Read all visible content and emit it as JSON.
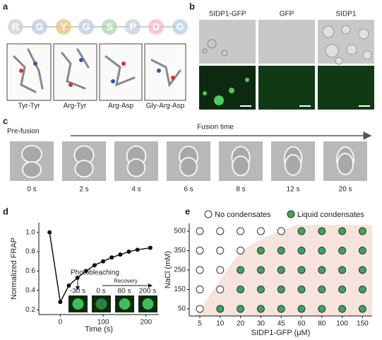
{
  "panel_labels": [
    "a",
    "b",
    "c",
    "d",
    "e"
  ],
  "panel_a": {
    "sequence": [
      "R",
      "G",
      "Y",
      "G",
      "S",
      "P",
      "D",
      "G"
    ],
    "sequence_colors": [
      "#cfcfcf",
      "#b9cbe6",
      "#e8c27a",
      "#b9cbe6",
      "#a9d8a9",
      "#c4cfdf",
      "#f2b8c6",
      "#b9cbe6"
    ],
    "image_labels": [
      "Tyr-Tyr",
      "Arg-Tyr",
      "Arg-Asp",
      "Gly-Arg-Asp"
    ]
  },
  "panel_b": {
    "columns": [
      "SIDP1-GFP",
      "GFP",
      "SIDP1"
    ]
  },
  "panel_c": {
    "start_label": "Pre-fusion",
    "arrow_label": "Fusion time",
    "times": [
      "0 s",
      "2 s",
      "4 s",
      "6 s",
      "8 s",
      "12 s",
      "20 s"
    ]
  },
  "chart_data": [
    {
      "type": "line",
      "xlabel": "Time (s)",
      "ylabel": "Normalized FRAP",
      "color": "#111111",
      "x": [
        -25,
        0,
        20,
        40,
        60,
        80,
        100,
        120,
        140,
        160,
        180,
        210
      ],
      "values": [
        1.0,
        0.28,
        0.45,
        0.53,
        0.6,
        0.66,
        0.7,
        0.74,
        0.77,
        0.8,
        0.82,
        0.84
      ],
      "xlim": [
        -50,
        230
      ],
      "xticks": [
        0,
        100,
        200
      ],
      "ylim": [
        0.15,
        1.1
      ],
      "yticks": [
        0.2,
        0.4,
        0.6,
        0.8,
        {
          "value": 1.0,
          "label": "1.0"
        }
      ],
      "annotations": [
        "Photobleaching",
        "Recovery"
      ],
      "inset_labels": [
        "-30 s",
        "0 s",
        "80 s",
        "200 s"
      ]
    },
    {
      "type": "scatter",
      "xlabel": "SIDP1-GFP (μM)",
      "ylabel": "NaCl (mM)",
      "xticks": [
        5,
        10,
        20,
        30,
        45,
        60,
        80,
        100,
        150
      ],
      "yticks": [
        50,
        150,
        250,
        350,
        500
      ],
      "series": [
        {
          "name": "No condensates",
          "color": "#ffffff",
          "x": [
            5,
            10,
            20,
            30,
            45,
            5,
            10,
            20,
            5,
            10,
            5,
            10,
            5
          ],
          "y": [
            500,
            500,
            500,
            500,
            500,
            350,
            350,
            350,
            250,
            250,
            150,
            150,
            50
          ]
        },
        {
          "name": "Liquid condensates",
          "color": "#3aa55c",
          "x": [
            60,
            80,
            100,
            150,
            30,
            45,
            60,
            80,
            100,
            150,
            20,
            30,
            45,
            60,
            80,
            100,
            150,
            20,
            30,
            45,
            60,
            80,
            100,
            150,
            10,
            20,
            30,
            45,
            60,
            80,
            100,
            150
          ],
          "y": [
            500,
            500,
            500,
            500,
            350,
            350,
            350,
            350,
            350,
            350,
            250,
            250,
            250,
            250,
            250,
            250,
            250,
            150,
            150,
            150,
            150,
            150,
            150,
            150,
            50,
            50,
            50,
            50,
            50,
            50,
            50,
            50
          ]
        }
      ]
    }
  ]
}
